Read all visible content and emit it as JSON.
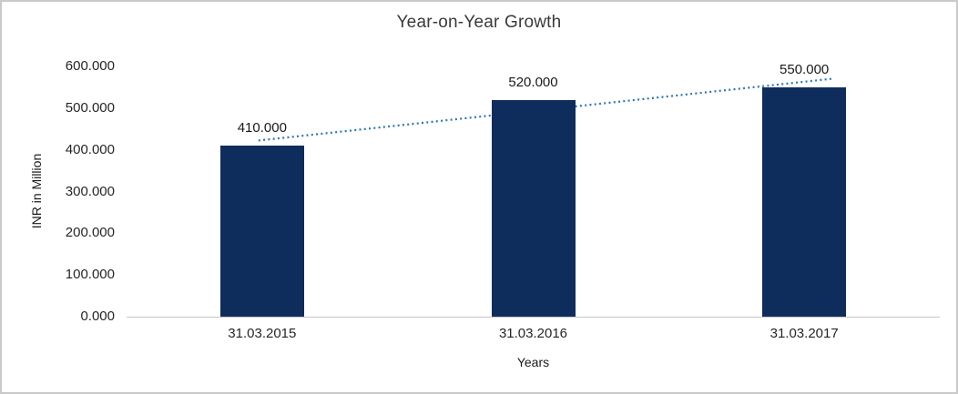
{
  "chart_data": {
    "type": "bar",
    "title": "Year-on-Year Growth",
    "xlabel": "Years",
    "ylabel": "INR in Million",
    "categories": [
      "31.03.2015",
      "31.03.2016",
      "31.03.2017"
    ],
    "values": [
      410,
      520,
      550
    ],
    "value_labels": [
      "410.000",
      "520.000",
      "550.000"
    ],
    "ylim": [
      0,
      600
    ],
    "yticks": [
      0,
      100,
      200,
      300,
      400,
      500,
      600
    ],
    "ytick_labels": [
      "0.000",
      "100.000",
      "200.000",
      "300.000",
      "400.000",
      "500.000",
      "600.000"
    ],
    "grid": false,
    "legend": false,
    "bar_color": "#0F2D5C",
    "trendline": {
      "style": "dotted",
      "color": "#2E75B6",
      "points": [
        423.3,
        493.3,
        563.3
      ]
    }
  }
}
